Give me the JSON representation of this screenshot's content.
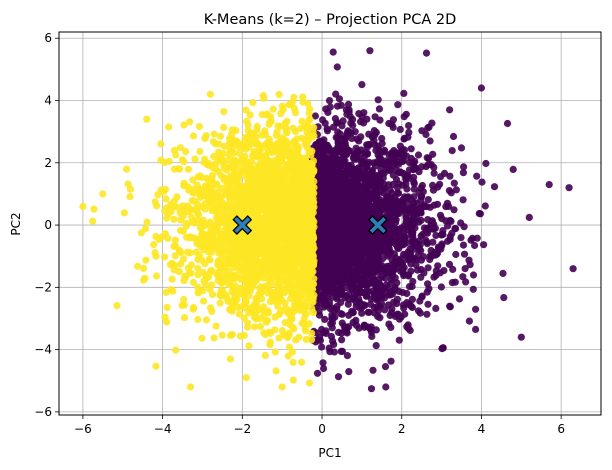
{
  "chart_data": {
    "type": "scatter",
    "title": "K-Means (k=2) – Projection PCA 2D",
    "xlabel": "PC1",
    "ylabel": "PC2",
    "xlim": [
      -6.6,
      7.0
    ],
    "ylim": [
      -6.1,
      6.2
    ],
    "xticks": [
      -6,
      -4,
      -2,
      0,
      2,
      4,
      6
    ],
    "yticks": [
      -6,
      -4,
      -2,
      0,
      2,
      4,
      6
    ],
    "grid": true,
    "legend": "none",
    "clusters": [
      {
        "id": 0,
        "color": "#440154",
        "centroid": [
          1.4,
          0.0
        ],
        "x_range": [
          -0.3,
          6.4
        ],
        "y_range": [
          -5.3,
          5.6
        ],
        "outliers": [
          [
            1.2,
            5.6
          ],
          [
            4.0,
            4.4
          ],
          [
            6.2,
            1.2
          ],
          [
            6.3,
            -1.4
          ],
          [
            5.7,
            1.3
          ],
          [
            5.0,
            -3.6
          ],
          [
            1.6,
            -5.2
          ],
          [
            3.2,
            3.7
          ]
        ]
      },
      {
        "id": 1,
        "color": "#fde725",
        "centroid": [
          -2.0,
          0.0
        ],
        "x_range": [
          -6.1,
          -0.2
        ],
        "y_range": [
          -5.2,
          4.2
        ],
        "outliers": [
          [
            -2.8,
            4.2
          ],
          [
            -6.0,
            0.6
          ],
          [
            -3.3,
            -5.2
          ],
          [
            -1.9,
            -4.9
          ],
          [
            -1.0,
            -5.2
          ],
          [
            -5.5,
            1.0
          ],
          [
            -4.4,
            3.4
          ],
          [
            -2.3,
            -4.3
          ]
        ]
      }
    ],
    "centroid_marker": {
      "shape": "X",
      "color": "#2c7fb8",
      "edge": "#000000"
    }
  }
}
